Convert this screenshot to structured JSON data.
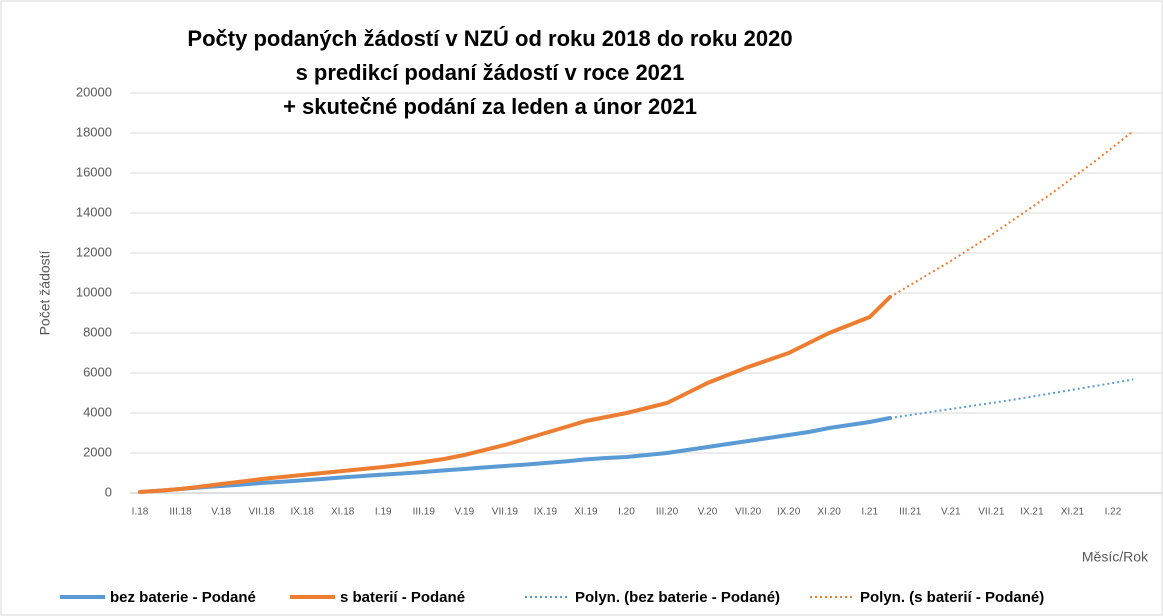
{
  "chart_data": {
    "type": "line",
    "title_lines": [
      "Počty podaných žádostí v NZÚ od roku 2018 do roku  2020",
      "s predikcí podaní žádostí v roce 2021",
      "+ skutečné podání za leden a únor 2021"
    ],
    "y_label": "Počet žádostí",
    "x_label": "Měsíc/Rok",
    "categories": [
      "I.18",
      null,
      "III.18",
      null,
      "V.18",
      null,
      "VII.18",
      null,
      "IX.18",
      null,
      "XI.18",
      null,
      "I.19",
      null,
      "III.19",
      null,
      "V.19",
      null,
      "VII.19",
      null,
      "IX.19",
      null,
      "XI.19",
      null,
      "I.20",
      null,
      "III.20",
      null,
      "V.20",
      null,
      "VII.20",
      null,
      "IX.20",
      null,
      "XI.20",
      null,
      "I.21",
      null,
      "III.21",
      null,
      "V.21",
      null,
      "VII.21",
      null,
      "IX.21",
      null,
      "XI.21",
      null,
      "I.22",
      null
    ],
    "series": [
      {
        "name": "bez baterie - Podané",
        "color": "#5b9bd5",
        "style": "solid",
        "values": [
          50,
          120,
          200,
          280,
          350,
          420,
          500,
          560,
          630,
          700,
          780,
          850,
          920,
          980,
          1050,
          1130,
          1200,
          1280,
          1350,
          1420,
          1500,
          1580,
          1680,
          1750,
          1800,
          1900,
          2000,
          2150,
          2300,
          2450,
          2600,
          2750,
          2900,
          3050,
          3250,
          3400,
          3550,
          3750,
          null,
          null,
          null,
          null,
          null,
          null,
          null,
          null,
          null,
          null,
          null,
          null
        ]
      },
      {
        "name": "s baterií - Podané",
        "color": "#ed7d31",
        "style": "solid",
        "values": [
          50,
          120,
          200,
          320,
          450,
          570,
          700,
          800,
          900,
          1000,
          1100,
          1200,
          1300,
          1420,
          1550,
          1700,
          1900,
          2150,
          2400,
          2700,
          3000,
          3300,
          3600,
          3800,
          4000,
          4250,
          4500,
          5000,
          5500,
          5900,
          6300,
          6650,
          7000,
          7500,
          8000,
          8400,
          8800,
          9800,
          null,
          null,
          null,
          null,
          null,
          null,
          null,
          null,
          null,
          null,
          null,
          null
        ]
      },
      {
        "name": "Polyn. (bez baterie - Podané)",
        "color": "#5b9bd5",
        "style": "dotted",
        "values": [
          null,
          null,
          null,
          null,
          null,
          null,
          null,
          null,
          null,
          null,
          null,
          null,
          null,
          null,
          null,
          null,
          null,
          null,
          null,
          null,
          null,
          null,
          null,
          null,
          null,
          null,
          null,
          null,
          null,
          null,
          null,
          null,
          null,
          null,
          null,
          null,
          null,
          3750,
          3900,
          4050,
          4200,
          4350,
          4500,
          4650,
          4820,
          4990,
          5160,
          5330,
          5500,
          5680
        ]
      },
      {
        "name": "Polyn. (s baterií - Podané)",
        "color": "#ed7d31",
        "style": "dotted",
        "values": [
          null,
          null,
          null,
          null,
          null,
          null,
          null,
          null,
          null,
          null,
          null,
          null,
          null,
          null,
          null,
          null,
          null,
          null,
          null,
          null,
          null,
          null,
          null,
          null,
          null,
          null,
          null,
          null,
          null,
          null,
          null,
          null,
          null,
          null,
          null,
          null,
          null,
          9800,
          10400,
          11000,
          11600,
          12250,
          12900,
          13600,
          14300,
          15000,
          15750,
          16500,
          17300,
          18100
        ]
      }
    ],
    "ylim": [
      0,
      20000
    ],
    "yticks": [
      0,
      2000,
      4000,
      6000,
      8000,
      10000,
      12000,
      14000,
      16000,
      18000,
      20000
    ],
    "grid": true
  }
}
